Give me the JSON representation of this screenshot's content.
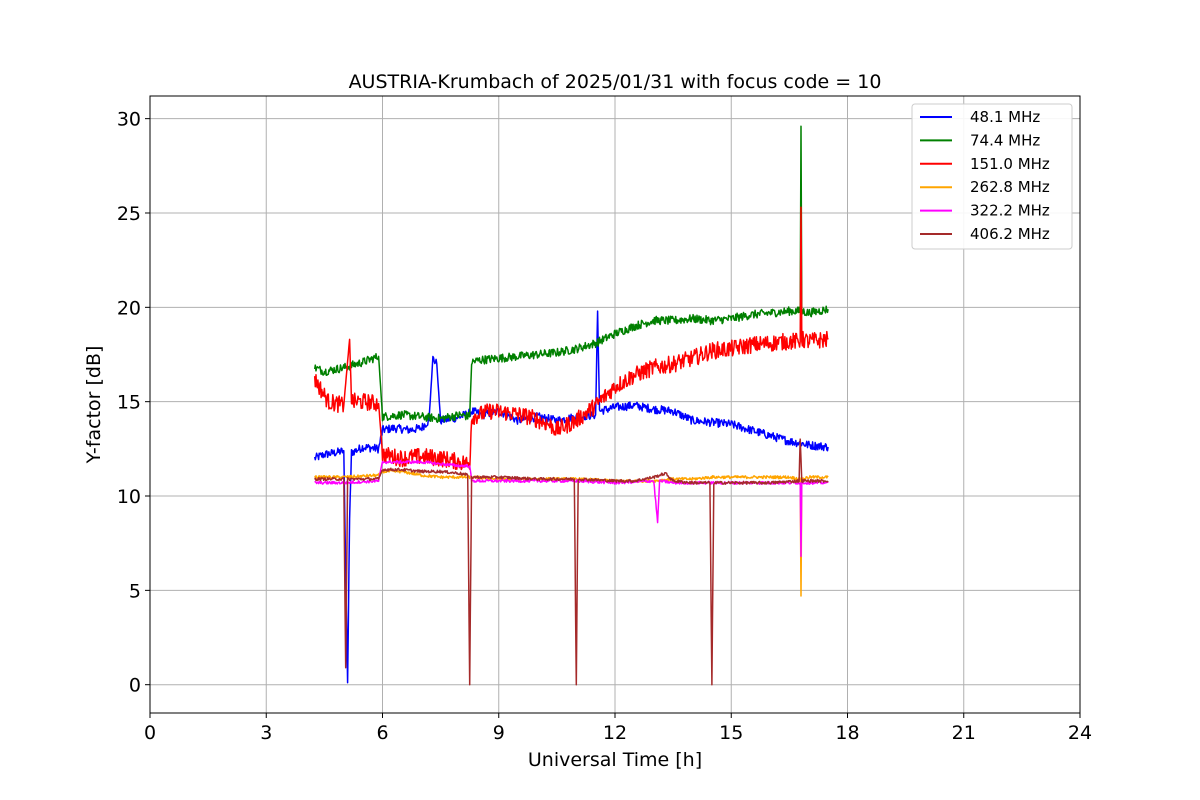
{
  "chart_data": {
    "type": "line",
    "title": "AUSTRIA-Krumbach of 2025/01/31 with focus code = 10",
    "xlabel": "Universal Time [h]",
    "ylabel": "Y-factor [dB]",
    "xlim": [
      0,
      24
    ],
    "ylim": [
      -1.5,
      31.2
    ],
    "xticks": [
      0,
      3,
      6,
      9,
      12,
      15,
      18,
      21,
      24
    ],
    "yticks": [
      0,
      5,
      10,
      15,
      20,
      25,
      30
    ],
    "grid": true,
    "legend_position": "top-right",
    "series": [
      {
        "name": " 48.1 MHz",
        "color": "#0000ff",
        "x": [
          4.25,
          4.5,
          4.8,
          5.0,
          5.1,
          5.15,
          5.2,
          5.5,
          5.9,
          6.0,
          6.3,
          6.7,
          7.0,
          7.2,
          7.3,
          7.4,
          7.5,
          7.8,
          8.0,
          8.25,
          8.3,
          8.6,
          9.0,
          9.5,
          10.0,
          10.5,
          11.0,
          11.5,
          11.55,
          11.6,
          12.0,
          12.5,
          13.0,
          13.5,
          14.0,
          14.5,
          15.0,
          15.5,
          16.0,
          16.5,
          16.8,
          17.0,
          17.5
        ],
        "y": [
          12.0,
          12.2,
          12.3,
          12.4,
          0.1,
          8.8,
          12.3,
          12.6,
          12.5,
          13.5,
          13.6,
          13.5,
          13.6,
          14.0,
          17.3,
          17.0,
          14.0,
          14.1,
          14.2,
          14.4,
          14.5,
          14.3,
          14.5,
          14.0,
          14.2,
          14.0,
          14.2,
          14.3,
          19.8,
          14.5,
          14.7,
          14.8,
          14.6,
          14.5,
          14.0,
          13.9,
          13.8,
          13.5,
          13.2,
          12.9,
          12.8,
          12.7,
          12.6
        ]
      },
      {
        "name": " 74.4 MHz",
        "color": "#008000",
        "x": [
          4.25,
          4.5,
          5.0,
          5.5,
          5.9,
          6.0,
          6.5,
          7.0,
          7.5,
          8.0,
          8.25,
          8.3,
          8.5,
          9.0,
          9.5,
          10.0,
          10.5,
          11.0,
          11.5,
          12.0,
          12.5,
          13.0,
          13.5,
          14.0,
          14.5,
          15.0,
          15.5,
          16.0,
          16.5,
          16.78,
          16.8,
          16.82,
          17.0,
          17.5
        ],
        "y": [
          16.8,
          16.6,
          16.8,
          17.1,
          17.4,
          14.2,
          14.3,
          14.2,
          14.1,
          14.3,
          14.2,
          17.1,
          17.2,
          17.3,
          17.4,
          17.5,
          17.6,
          17.8,
          18.1,
          18.6,
          19.0,
          19.3,
          19.3,
          19.4,
          19.3,
          19.4,
          19.6,
          19.7,
          19.8,
          19.8,
          29.6,
          19.8,
          19.7,
          19.9
        ]
      },
      {
        "name": "151.0 MHz",
        "color": "#ff0000",
        "x": [
          4.25,
          4.6,
          5.0,
          5.15,
          5.2,
          5.25,
          5.5,
          5.9,
          6.0,
          6.5,
          7.0,
          7.5,
          8.0,
          8.25,
          8.3,
          8.8,
          9.3,
          9.8,
          10.3,
          10.5,
          10.8,
          11.0,
          11.5,
          12.0,
          12.5,
          13.0,
          13.5,
          14.0,
          14.5,
          15.0,
          15.5,
          16.0,
          16.5,
          16.78,
          16.8,
          16.82,
          17.0,
          17.5
        ],
        "y": [
          16.2,
          15.0,
          14.8,
          18.3,
          15.1,
          15.0,
          15.0,
          14.9,
          12.2,
          12.0,
          12.1,
          12.0,
          11.8,
          11.7,
          14.2,
          14.5,
          14.4,
          14.2,
          13.8,
          13.5,
          13.8,
          14.0,
          14.8,
          15.8,
          16.4,
          16.8,
          17.0,
          17.3,
          17.7,
          17.8,
          18.0,
          18.1,
          18.2,
          18.2,
          25.3,
          18.3,
          18.2,
          18.3
        ]
      },
      {
        "name": "262.8 MHz",
        "color": "#ffa500",
        "x": [
          4.25,
          5.0,
          5.9,
          6.0,
          6.5,
          7.0,
          7.5,
          8.0,
          8.3,
          9.0,
          10.0,
          11.0,
          12.0,
          13.0,
          13.5,
          14.0,
          14.5,
          15.0,
          15.5,
          16.0,
          16.5,
          16.78,
          16.8,
          16.82,
          17.0,
          17.5
        ],
        "y": [
          11.0,
          11.0,
          11.1,
          11.3,
          11.3,
          11.1,
          11.0,
          11.0,
          11.0,
          10.9,
          10.9,
          10.9,
          10.8,
          10.8,
          10.9,
          10.9,
          11.0,
          11.0,
          11.0,
          11.0,
          11.0,
          10.9,
          4.7,
          10.9,
          11.0,
          11.0
        ]
      },
      {
        "name": "322.2 MHz",
        "color": "#ff00ff",
        "x": [
          4.25,
          5.0,
          5.9,
          6.0,
          6.5,
          7.0,
          7.5,
          8.0,
          8.25,
          8.3,
          9.0,
          10.0,
          11.0,
          12.0,
          13.0,
          13.1,
          13.15,
          13.5,
          14.0,
          15.0,
          16.0,
          16.78,
          16.8,
          16.82,
          17.5
        ],
        "y": [
          10.7,
          10.7,
          10.8,
          11.8,
          11.8,
          11.8,
          11.7,
          11.6,
          11.6,
          10.8,
          10.8,
          10.8,
          10.8,
          10.7,
          10.8,
          8.6,
          10.8,
          10.7,
          10.7,
          10.7,
          10.7,
          10.7,
          6.8,
          10.7,
          10.7
        ]
      },
      {
        "name": "406.2 MHz",
        "color": "#a52a2a",
        "x": [
          4.25,
          5.0,
          5.05,
          5.1,
          5.5,
          5.9,
          6.0,
          6.5,
          7.0,
          7.5,
          8.0,
          8.2,
          8.25,
          8.3,
          9.0,
          10.0,
          10.95,
          11.0,
          11.05,
          12.0,
          12.5,
          13.0,
          13.3,
          13.5,
          14.0,
          14.45,
          14.5,
          14.55,
          15.0,
          16.0,
          16.75,
          16.78,
          16.82,
          17.5
        ],
        "y": [
          10.9,
          10.9,
          0.9,
          10.9,
          10.9,
          10.9,
          11.4,
          11.4,
          11.3,
          11.3,
          11.2,
          11.1,
          0.0,
          11.0,
          11.0,
          10.9,
          10.9,
          0.0,
          10.9,
          10.8,
          10.8,
          11.0,
          11.2,
          10.8,
          10.7,
          10.7,
          0.0,
          10.7,
          10.7,
          10.7,
          10.8,
          13.0,
          10.8,
          10.8
        ]
      }
    ]
  }
}
